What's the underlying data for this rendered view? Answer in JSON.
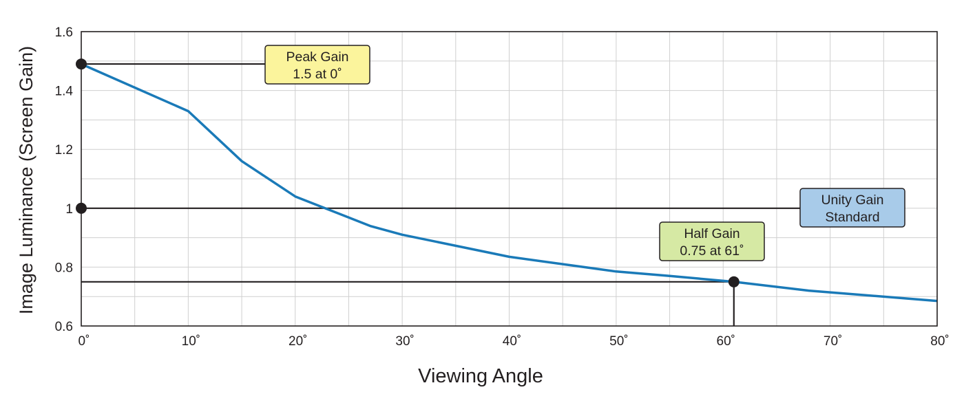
{
  "chart_data": {
    "type": "line",
    "xlabel": "Viewing Angle",
    "ylabel": "Image Luminance (Screen Gain)",
    "xlim": [
      0,
      80
    ],
    "ylim": [
      0.6,
      1.6
    ],
    "grid": true,
    "x_ticks": [
      {
        "value": 0,
        "label": "0˚"
      },
      {
        "value": 10,
        "label": "10˚"
      },
      {
        "value": 20,
        "label": "20˚"
      },
      {
        "value": 30,
        "label": "30˚"
      },
      {
        "value": 40,
        "label": "40˚"
      },
      {
        "value": 50,
        "label": "50˚"
      },
      {
        "value": 60,
        "label": "60˚"
      },
      {
        "value": 70,
        "label": "70˚"
      },
      {
        "value": 80,
        "label": "80˚"
      }
    ],
    "y_ticks": [
      {
        "value": 0.6,
        "label": "0.6"
      },
      {
        "value": 0.8,
        "label": "0.8"
      },
      {
        "value": 1.0,
        "label": "1"
      },
      {
        "value": 1.2,
        "label": "1.2"
      },
      {
        "value": 1.4,
        "label": "1.4"
      },
      {
        "value": 1.6,
        "label": "1.6"
      }
    ],
    "series": [
      {
        "x": [
          0,
          10,
          15,
          20,
          27,
          30,
          40,
          47,
          50,
          55,
          61,
          68,
          80
        ],
        "y": [
          1.49,
          1.33,
          1.16,
          1.04,
          0.94,
          0.91,
          0.835,
          0.8,
          0.785,
          0.77,
          0.75,
          0.72,
          0.685
        ],
        "color": "#1a7ab8"
      }
    ],
    "annotations": [
      {
        "line1": "Peak Gain",
        "line2": "1.5 at 0˚",
        "x": 0,
        "y": 1.49,
        "box_color": "#fbf49c"
      },
      {
        "line1": "Unity Gain",
        "line2": "Standard",
        "x": 0,
        "y": 1.0,
        "box_color": "#a8cbe9"
      },
      {
        "line1": "Half Gain",
        "line2": "0.75 at 61˚",
        "x": 61,
        "y": 0.75,
        "box_color": "#d6e9a4"
      }
    ]
  }
}
